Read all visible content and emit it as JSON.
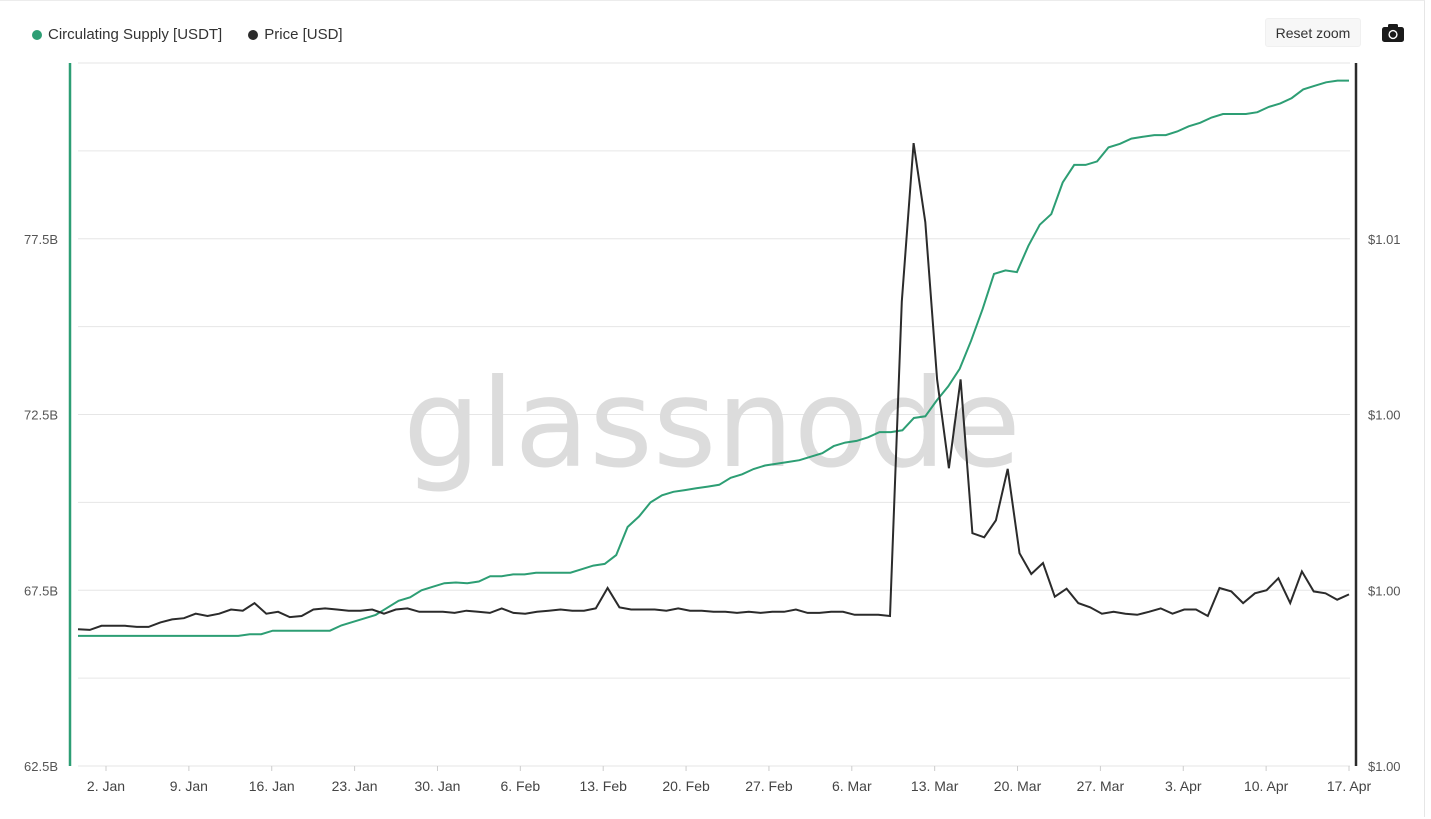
{
  "legend": {
    "supply_label": "Circulating Supply [USDT]",
    "price_label": "Price [USD]"
  },
  "toolbar": {
    "reset_zoom_label": "Reset zoom",
    "camera_icon": "camera-icon"
  },
  "watermark": "glassnode",
  "colors": {
    "supply": "#2d9e74",
    "price": "#2b2b2b",
    "grid": "#e6e6e6"
  },
  "chart_data": {
    "type": "line",
    "x_ticks": [
      "2. Jan",
      "9. Jan",
      "16. Jan",
      "23. Jan",
      "30. Jan",
      "6. Feb",
      "13. Feb",
      "20. Feb",
      "27. Feb",
      "6. Mar",
      "13. Mar",
      "20. Mar",
      "27. Mar",
      "3. Apr",
      "10. Apr",
      "17. Apr"
    ],
    "y_left_ticks": [
      "62.5B",
      "67.5B",
      "72.5B",
      "77.5B"
    ],
    "y_left_tick_values": [
      62.5,
      67.5,
      72.5,
      77.5
    ],
    "y_right_ticks": [
      "$1.00",
      "$1.00",
      "$1.00",
      "$1.01"
    ],
    "y_left_range": [
      62.5,
      82.5
    ],
    "y_right_range": [
      0.9962,
      1.0148
    ],
    "grid": true,
    "legend_position": "top-left",
    "x_start": "2023-01-01",
    "series": [
      {
        "name": "Circulating Supply [USDT]",
        "axis": "left",
        "unit": "B",
        "values": [
          66.2,
          66.2,
          66.2,
          66.2,
          66.2,
          66.2,
          66.2,
          66.2,
          66.2,
          66.2,
          66.2,
          66.2,
          66.2,
          66.2,
          66.2,
          66.25,
          66.25,
          66.35,
          66.35,
          66.35,
          66.35,
          66.35,
          66.35,
          66.5,
          66.6,
          66.7,
          66.8,
          67.0,
          67.2,
          67.3,
          67.5,
          67.6,
          67.7,
          67.72,
          67.7,
          67.75,
          67.9,
          67.9,
          67.95,
          67.95,
          68.0,
          68.0,
          68.0,
          68.0,
          68.1,
          68.2,
          68.25,
          68.5,
          69.3,
          69.6,
          70.0,
          70.2,
          70.3,
          70.35,
          70.4,
          70.45,
          70.5,
          70.7,
          70.8,
          70.95,
          71.05,
          71.1,
          71.15,
          71.2,
          71.3,
          71.4,
          71.6,
          71.7,
          71.75,
          71.85,
          72.0,
          72.0,
          72.05,
          72.4,
          72.45,
          72.9,
          73.3,
          73.8,
          74.6,
          75.5,
          76.5,
          76.6,
          76.55,
          77.3,
          77.9,
          78.2,
          79.1,
          79.6,
          79.6,
          79.7,
          80.1,
          80.2,
          80.35,
          80.4,
          80.45,
          80.45,
          80.55,
          80.7,
          80.8,
          80.95,
          81.05,
          81.05,
          81.05,
          81.1,
          81.25,
          81.35,
          81.5,
          81.75,
          81.85,
          81.95,
          82.0,
          82.0
        ]
      },
      {
        "name": "Price [USD]",
        "axis": "right",
        "unit": "USD",
        "values": [
          0.99982,
          0.9998,
          0.99991,
          0.99991,
          0.99991,
          0.99988,
          0.99988,
          1.0,
          1.00008,
          1.00011,
          1.00023,
          1.00017,
          1.00023,
          1.00034,
          1.00031,
          1.00051,
          1.00023,
          1.00028,
          1.00014,
          1.00017,
          1.00034,
          1.00037,
          1.00034,
          1.00031,
          1.00031,
          1.00034,
          1.00023,
          1.00034,
          1.00037,
          1.00028,
          1.00028,
          1.00028,
          1.00025,
          1.00031,
          1.00028,
          1.00025,
          1.00037,
          1.00025,
          1.00023,
          1.00028,
          1.00031,
          1.00034,
          1.00031,
          1.00031,
          1.00037,
          1.00091,
          1.0004,
          1.00034,
          1.00034,
          1.00034,
          1.00031,
          1.00037,
          1.00031,
          1.00031,
          1.00028,
          1.00028,
          1.00025,
          1.00028,
          1.00025,
          1.00028,
          1.00028,
          1.00034,
          1.00025,
          1.00025,
          1.00028,
          1.00028,
          1.0002,
          1.0002,
          1.0002,
          1.00017,
          1.00849,
          1.01268,
          1.01059,
          1.00643,
          1.00408,
          1.00643,
          1.00236,
          1.00225,
          1.0027,
          1.00406,
          1.00183,
          1.00128,
          1.00157,
          1.00068,
          1.00089,
          1.00051,
          1.0004,
          1.00023,
          1.00028,
          1.00023,
          1.0002,
          1.00028,
          1.00037,
          1.00023,
          1.00034,
          1.00034,
          1.00017,
          1.00091,
          1.00082,
          1.00051,
          1.00077,
          1.00085,
          1.00117,
          1.00051,
          1.00135,
          1.00082,
          1.00077,
          1.0006,
          1.00074
        ]
      }
    ]
  }
}
